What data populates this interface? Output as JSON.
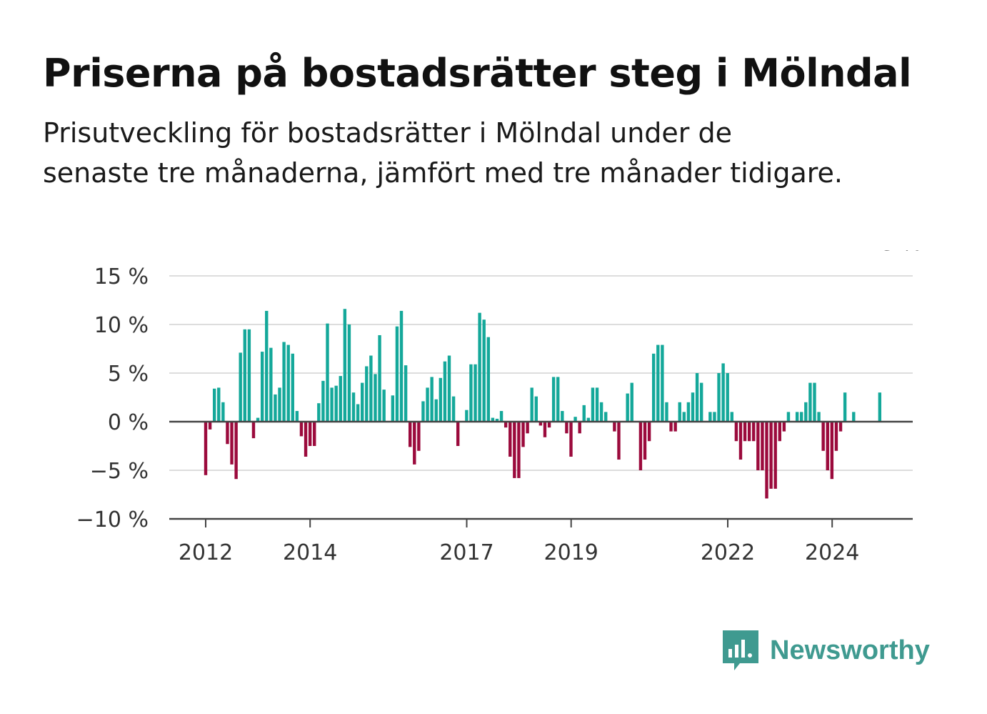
{
  "header": {
    "title": "Priserna på bostadsrätter steg i Mölndal",
    "subtitle": "Prisutveckling för bostadsrätter i Mölndal under de senaste tre månaderna, jämfört med tre månader tidigare."
  },
  "brand": {
    "name": "Newsworthy",
    "icon": "newsworthy-logo-icon",
    "color": "#3f9a90"
  },
  "colors": {
    "positive": "#14a89a",
    "negative": "#9b0a3c",
    "grid": "#dddddd",
    "axis": "#444444"
  },
  "chart_data": {
    "type": "bar",
    "ylim": [
      -10,
      15
    ],
    "yticks": [
      15,
      10,
      5,
      0,
      -5,
      -10
    ],
    "ytick_labels": [
      "15 %",
      "10 %",
      "5 %",
      "0 %",
      "−5 %",
      "−10 %"
    ],
    "xtick_labels": [
      "2012",
      "2014",
      "2017",
      "2019",
      "2022",
      "2024"
    ],
    "xtick_values": [
      2012.0,
      2014.0,
      2017.0,
      2019.0,
      2022.0,
      2024.0
    ],
    "x_start": 2012.0,
    "x_step": 0.0833,
    "grid": true,
    "annotation": {
      "text": "3 %",
      "index": 160
    },
    "values": [
      -5.5,
      -0.8,
      3.4,
      3.5,
      2.0,
      -2.3,
      -4.4,
      -5.9,
      7.1,
      9.5,
      9.5,
      -1.7,
      0.4,
      7.2,
      11.4,
      7.6,
      2.8,
      3.5,
      8.2,
      7.9,
      7.0,
      1.1,
      -1.5,
      -3.6,
      -2.5,
      -2.5,
      1.9,
      4.2,
      10.1,
      3.5,
      3.7,
      4.7,
      11.6,
      10.0,
      3.0,
      1.8,
      4.0,
      5.7,
      6.8,
      4.9,
      8.9,
      3.3,
      0,
      2.7,
      9.8,
      11.4,
      5.8,
      -2.6,
      -4.4,
      -3.0,
      2.1,
      3.5,
      4.6,
      2.3,
      4.5,
      6.2,
      6.8,
      2.6,
      -2.5,
      0,
      1.2,
      5.9,
      5.9,
      11.2,
      10.5,
      8.7,
      0.4,
      0.3,
      1.1,
      -0.6,
      -3.6,
      -5.8,
      -5.8,
      -2.6,
      -1.2,
      3.5,
      2.6,
      -0.4,
      -1.6,
      -0.6,
      4.6,
      4.6,
      1.1,
      -1.2,
      -3.6,
      0.5,
      -1.2,
      1.7,
      0.4,
      3.5,
      3.5,
      2.0,
      1.0,
      0,
      -1.0,
      -3.9,
      0,
      2.9,
      4.0,
      0,
      -5.0,
      -3.9,
      -2.0,
      7.0,
      7.9,
      7.9,
      2.0,
      -1.0,
      -1.0,
      2.0,
      1.0,
      2.0,
      3.0,
      5.0,
      4.0,
      0,
      1.0,
      1.0,
      5.0,
      6.0,
      5.0,
      1.0,
      -2.0,
      -3.9,
      -2.0,
      -2.0,
      -2.0,
      -5.0,
      -5.0,
      -7.9,
      -6.9,
      -6.9,
      -2.0,
      -1.0,
      1.0,
      0,
      1.0,
      1.0,
      2.0,
      4.0,
      4.0,
      1.0,
      -3.0,
      -5.0,
      -5.9,
      -3.0,
      -1.0,
      3.0,
      0,
      1.0,
      0,
      0,
      0,
      0,
      0,
      3.0
    ]
  }
}
